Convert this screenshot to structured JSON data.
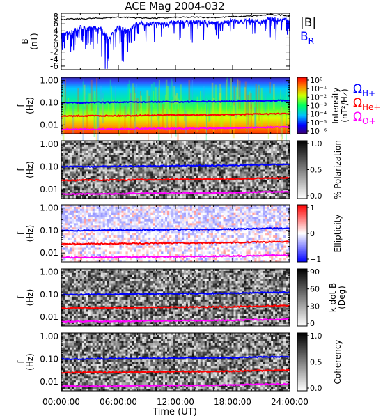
{
  "title": "ACE Mag 2004-032",
  "xlabel": "Time (UT)",
  "x_tick_labels": [
    "00:00:00",
    "06:00:00",
    "12:00:00",
    "18:00:00",
    "24:00:00"
  ],
  "colors": {
    "total": "#000000",
    "br": "#0000ff",
    "h": "#0000ff",
    "he": "#ff0000",
    "o": "#ff00ff"
  },
  "chart_data": [
    {
      "type": "line",
      "ylabel": "B (nT)",
      "ylim": [
        -7,
        9
      ],
      "x_range_hours": [
        0,
        24
      ],
      "y_tick_labels": [
        "8",
        "6",
        "4",
        "2",
        "0",
        "-2",
        "-4",
        "-6"
      ],
      "legend": {
        "placement": "right",
        "labels": [
          "|B|",
          "B"
        ],
        "br_subscript": "R"
      },
      "series": [
        {
          "name": "|B|",
          "color": "#000000",
          "points": [
            [
              0,
              7.3
            ],
            [
              2,
              7.4
            ],
            [
              4,
              7.6
            ],
            [
              6,
              7.9
            ],
            [
              8,
              7.7
            ],
            [
              10,
              7.6
            ],
            [
              12,
              7.8
            ],
            [
              14,
              7.9
            ],
            [
              16,
              7.8
            ],
            [
              18,
              8.0
            ],
            [
              20,
              8.2
            ],
            [
              22,
              8.6
            ],
            [
              24,
              8.4
            ]
          ]
        },
        {
          "name": "B",
          "color": "#0000ff",
          "points": [
            [
              0,
              3.0
            ],
            [
              1,
              3.5
            ],
            [
              2,
              5.0
            ],
            [
              3,
              4.5
            ],
            [
              4,
              5.0
            ],
            [
              5,
              2.0
            ],
            [
              6,
              5.0
            ],
            [
              7,
              4.0
            ],
            [
              8,
              6.0
            ],
            [
              9,
              6.0
            ],
            [
              10,
              6.0
            ],
            [
              11,
              6.0
            ],
            [
              12,
              6.5
            ],
            [
              13,
              6.5
            ],
            [
              14,
              6.5
            ],
            [
              15,
              6.5
            ],
            [
              16,
              6.0
            ],
            [
              17,
              6.5
            ],
            [
              18,
              7.0
            ],
            [
              19,
              6.5
            ],
            [
              20,
              7.0
            ],
            [
              21,
              6.5
            ],
            [
              22,
              7.5
            ],
            [
              23,
              7.0
            ],
            [
              24,
              7.5
            ]
          ]
        }
      ]
    },
    {
      "type": "heatmap",
      "ylabel": "f (Hz)",
      "yscale": "log",
      "ylim": [
        0.004,
        1.4
      ],
      "y_tick_labels": [
        "1.00",
        "0.10",
        "0.01"
      ],
      "colorbar": {
        "label": "Intensity (nT²/Hz)",
        "scale": "rainbow",
        "tick_labels": [
          "10⁰",
          "10⁻¹",
          "10⁻²",
          "10⁻³",
          "10⁻⁴",
          "10⁻⁵",
          "10⁻⁶"
        ]
      },
      "legend": {
        "placement": "right",
        "symbol": "Ω",
        "subscripts": [
          "H+",
          "He+",
          "O+"
        ]
      }
    },
    {
      "type": "heatmap",
      "ylabel": "f (Hz)",
      "yscale": "log",
      "ylim": [
        0.004,
        1.4
      ],
      "y_tick_labels": [
        "1.00",
        "0.10",
        "0.01"
      ],
      "colorbar": {
        "label": "% Polarization",
        "scale": "gray",
        "tick_labels": [
          "1.0",
          "0.5",
          "0.0"
        ]
      }
    },
    {
      "type": "heatmap",
      "ylabel": "f (Hz)",
      "yscale": "log",
      "ylim": [
        0.004,
        1.4
      ],
      "y_tick_labels": [
        "1.00",
        "0.10",
        "0.01"
      ],
      "colorbar": {
        "label": "Ellipticity",
        "scale": "blue-white-red",
        "tick_labels": [
          "1",
          "0",
          "−1"
        ]
      }
    },
    {
      "type": "heatmap",
      "ylabel": "f (Hz)",
      "yscale": "log",
      "ylim": [
        0.004,
        1.4
      ],
      "y_tick_labels": [
        "1.00",
        "0.10",
        "0.01"
      ],
      "colorbar": {
        "label": "k dot B (Deg)",
        "scale": "gray",
        "tick_labels": [
          "90",
          "60",
          "30",
          "0"
        ]
      }
    },
    {
      "type": "heatmap",
      "ylabel": "f (Hz)",
      "yscale": "log",
      "ylim": [
        0.004,
        1.4
      ],
      "y_tick_labels": [
        "1.00",
        "0.10",
        "0.01"
      ],
      "colorbar": {
        "label": "Coherency",
        "scale": "gray",
        "tick_labels": [
          "1.0",
          "0.5",
          "0.0"
        ]
      }
    }
  ],
  "gyrofrequency_lines": {
    "x_hours": [
      0,
      3,
      6,
      9,
      12,
      15,
      18,
      21,
      24
    ],
    "H": [
      0.1,
      0.102,
      0.105,
      0.108,
      0.11,
      0.112,
      0.115,
      0.123,
      0.128
    ],
    "He": [
      0.025,
      0.026,
      0.026,
      0.027,
      0.028,
      0.028,
      0.029,
      0.031,
      0.032
    ],
    "O": [
      0.0063,
      0.0064,
      0.0065,
      0.0068,
      0.0069,
      0.007,
      0.0072,
      0.0077,
      0.008
    ]
  }
}
